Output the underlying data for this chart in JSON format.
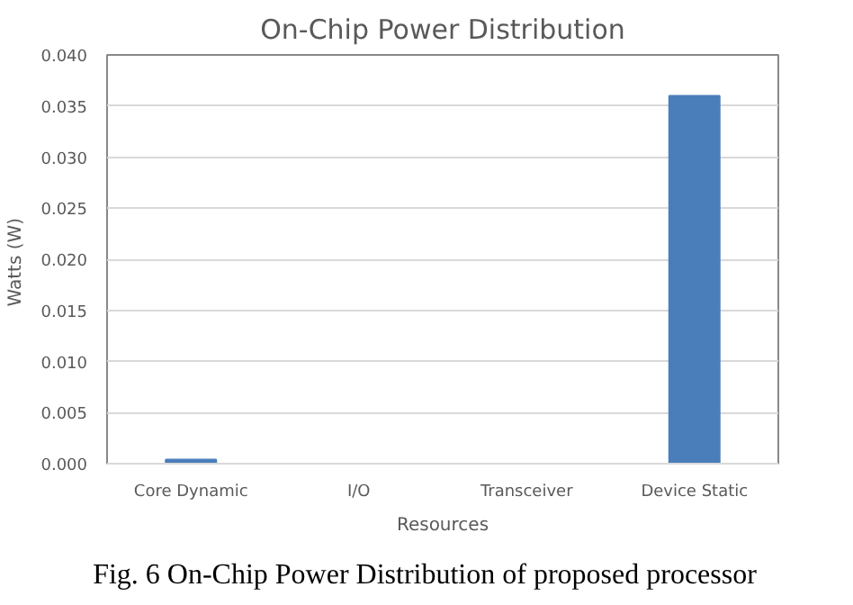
{
  "chart_data": {
    "type": "bar",
    "title": "On-Chip Power Distribution",
    "xlabel": "Resources",
    "ylabel": "Watts  (W)",
    "categories": [
      "Core Dynamic",
      "I/O",
      "Transceiver",
      "Device Static"
    ],
    "values": [
      0.0004,
      0,
      0,
      0.036
    ],
    "color": "#4a7ebb",
    "ylim": [
      0,
      0.04
    ],
    "yticks": [
      {
        "value": 0,
        "label": "0.000"
      },
      {
        "value": 0.005,
        "label": "0.005"
      },
      {
        "value": 0.01,
        "label": "0.010"
      },
      {
        "value": 0.015,
        "label": "0.015"
      },
      {
        "value": 0.02,
        "label": "0.020"
      },
      {
        "value": 0.025,
        "label": "0.025"
      },
      {
        "value": 0.03,
        "label": "0.030"
      },
      {
        "value": 0.035,
        "label": "0.035"
      },
      {
        "value": 0.04,
        "label": "0.040"
      }
    ],
    "grid": "y",
    "annotations": [
      "Fig. 6 On-Chip Power Distribution of proposed processor"
    ]
  }
}
